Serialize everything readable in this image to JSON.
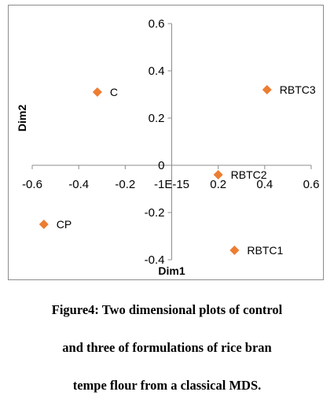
{
  "chart_data": {
    "type": "scatter",
    "xlabel": "Dim1",
    "ylabel": "Dim2",
    "xlim": [
      -0.6,
      0.6
    ],
    "ylim": [
      -0.4,
      0.6
    ],
    "x_ticks": [
      "-0.6",
      "-0.4",
      "-0.2",
      "-1E-15",
      "0.2",
      "0.4",
      "0.6"
    ],
    "y_ticks": [
      "0.6",
      "0.4",
      "0.2",
      "0",
      "-0.2",
      "-0.4"
    ],
    "marker_color": "#ED7D31",
    "grid": false,
    "points": [
      {
        "label": "C",
        "x": -0.32,
        "y": 0.31
      },
      {
        "label": "RBTC3",
        "x": 0.41,
        "y": 0.32
      },
      {
        "label": "RBTC2",
        "x": 0.2,
        "y": -0.04
      },
      {
        "label": "CP",
        "x": -0.55,
        "y": -0.25
      },
      {
        "label": "RBTC1",
        "x": 0.27,
        "y": -0.36
      }
    ]
  },
  "caption": {
    "line1": "Figure4: Two dimensional plots of control",
    "line2": "and three of formulations of rice bran",
    "line3": "tempe flour from a classical MDS."
  }
}
